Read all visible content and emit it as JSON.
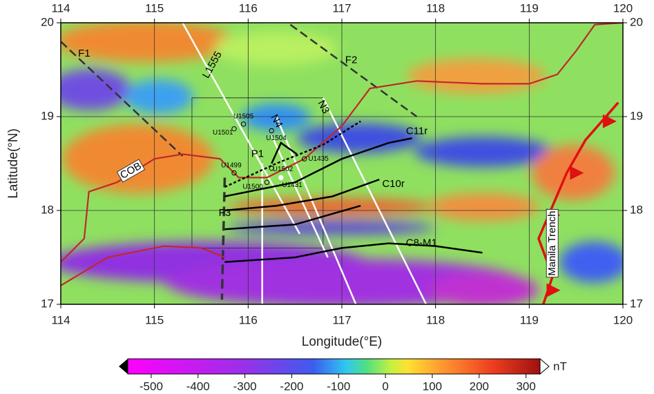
{
  "map": {
    "xlabel": "Longitude(°E)",
    "ylabel": "Latitude(°N)",
    "xlim": [
      114,
      120
    ],
    "ylim": [
      17,
      20
    ],
    "xticks": [
      114,
      115,
      116,
      117,
      118,
      119,
      120
    ],
    "yticks": [
      17,
      18,
      19,
      20
    ],
    "lines": [
      "L1555",
      "N4",
      "N3",
      "P1",
      "F1",
      "F2",
      "F3",
      "COB",
      "C11r",
      "C10r",
      "C8-M1",
      "Manila Trench"
    ],
    "sites": [
      "U1505",
      "U1501",
      "U1504",
      "U1499",
      "U1502",
      "U1500",
      "U1431",
      "U1435"
    ],
    "colorbar": {
      "unit": "nT",
      "lim": [
        -550,
        330
      ],
      "ticks": [
        -500,
        -400,
        -300,
        -200,
        -100,
        0,
        100,
        200,
        300
      ]
    }
  }
}
